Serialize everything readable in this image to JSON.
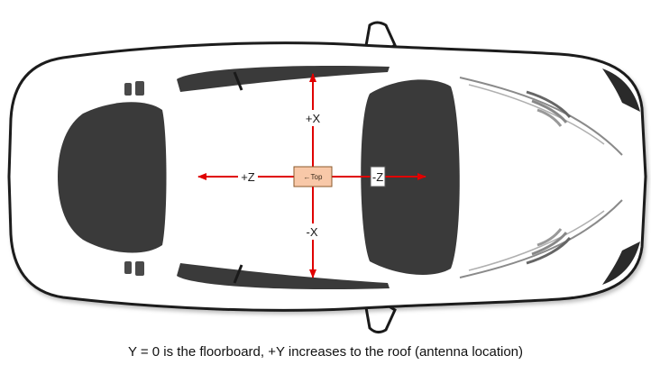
{
  "diagram": {
    "sensor_label": "←Top",
    "axes": {
      "plus_x": "+X",
      "minus_x": "-X",
      "plus_z": "+Z",
      "minus_z": "-Z"
    },
    "colors": {
      "arrow": "#e00000",
      "car_body": "#ffffff",
      "car_outline": "#1a1a1a",
      "glass": "#3a3a3a",
      "sensor_fill": "#f8c8a8",
      "sensor_border": "#8b5a2b"
    }
  },
  "caption": "Y = 0 is the floorboard, +Y increases to the roof (antenna location)"
}
